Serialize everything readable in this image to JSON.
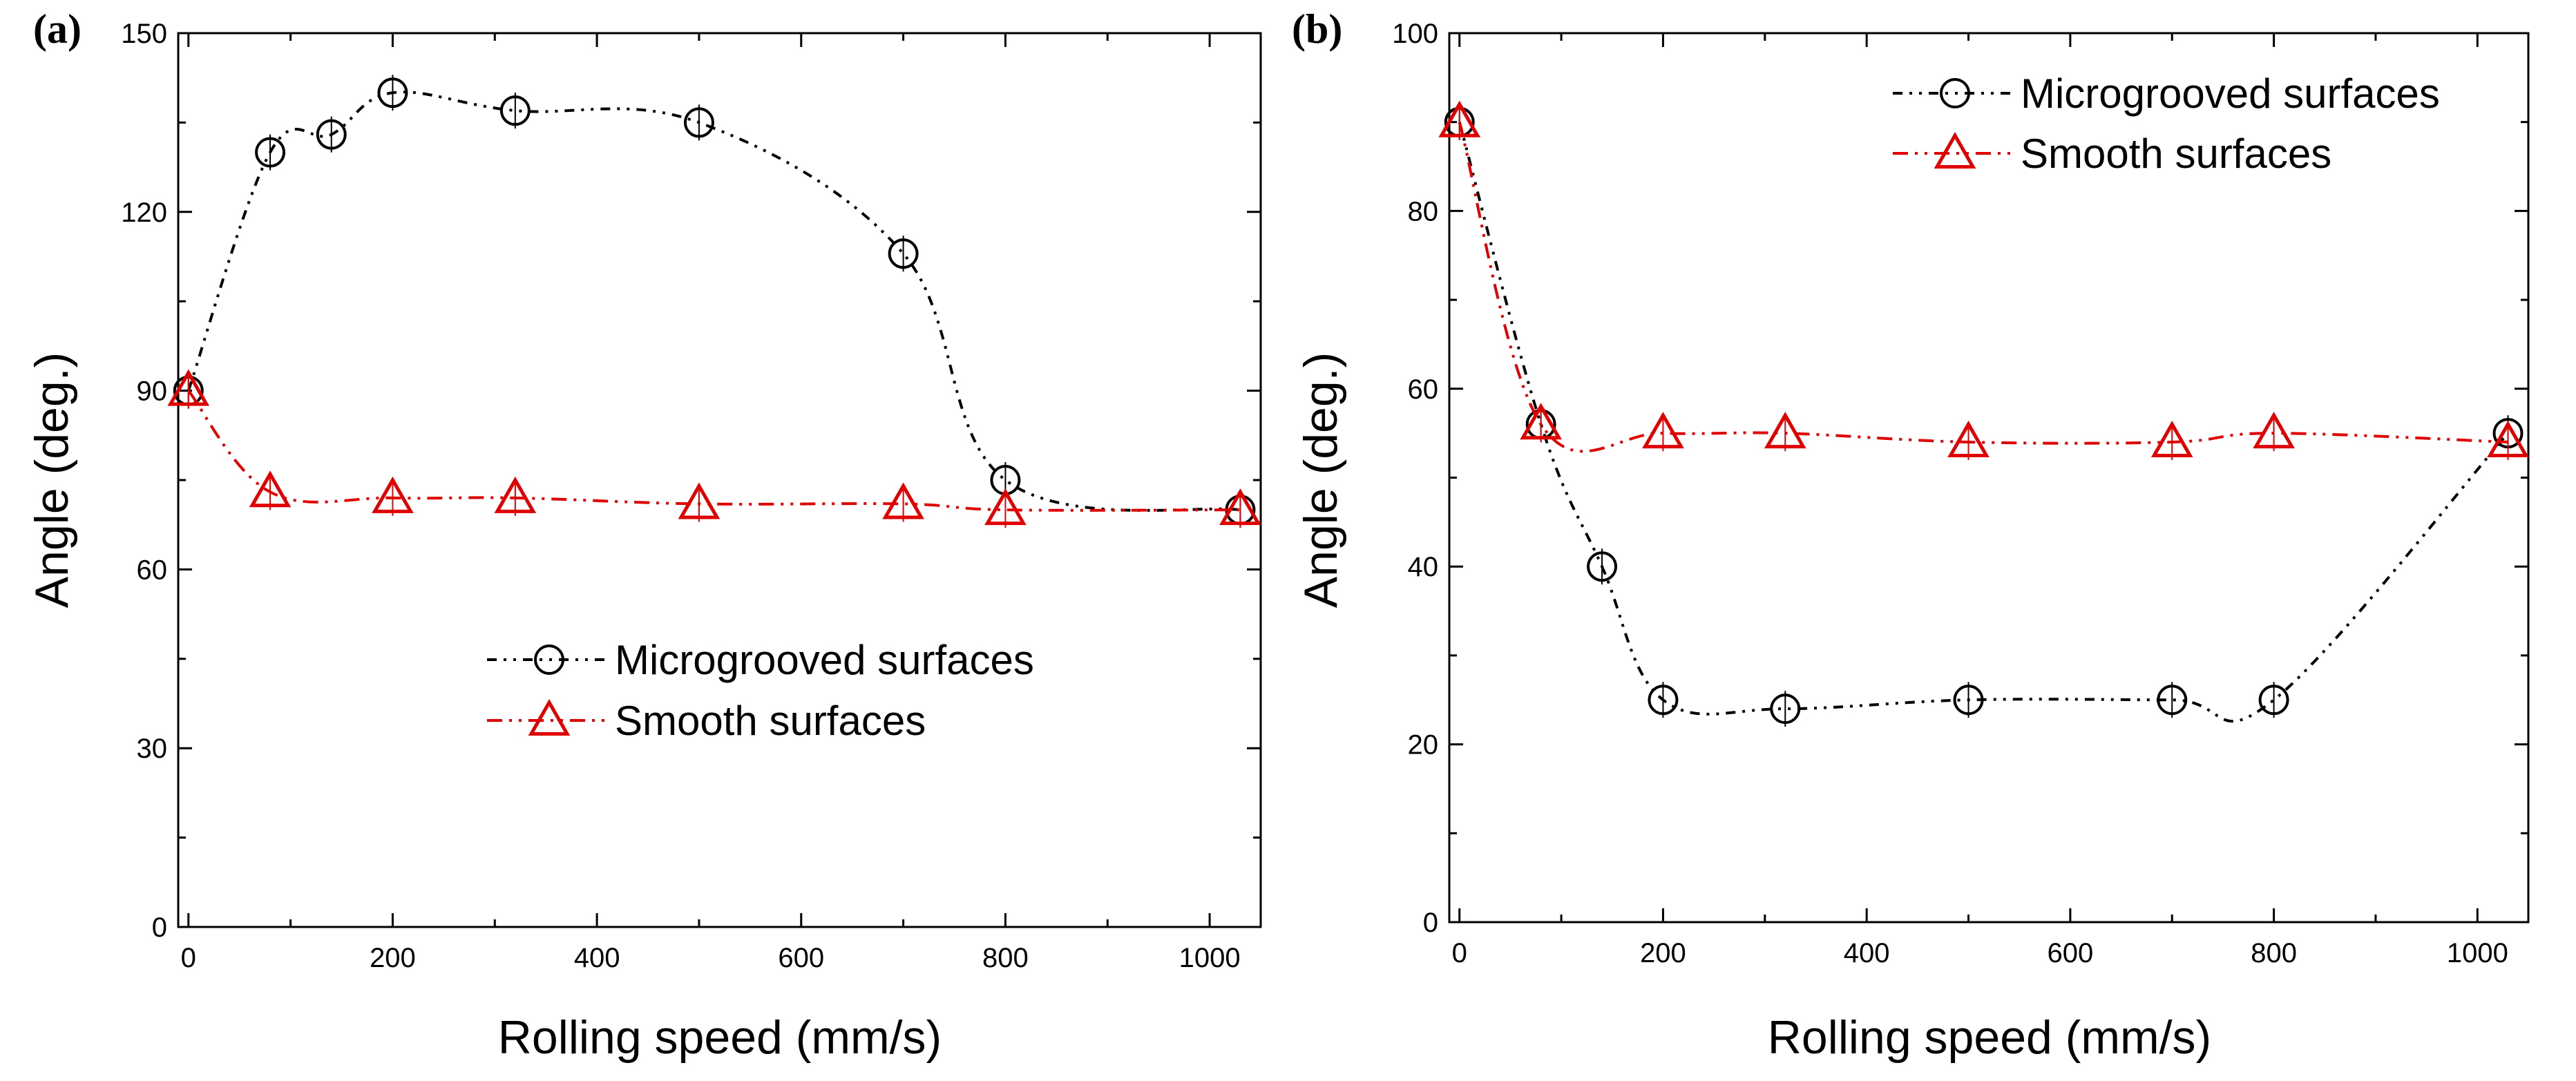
{
  "chart_data": [
    {
      "type": "line",
      "panel_label": "(a)",
      "xlabel": "Rolling speed (mm/s)",
      "ylabel": "Angle (deg.)",
      "xlim": [
        -10,
        1050
      ],
      "ylim": [
        0,
        150
      ],
      "xticks": [
        0,
        200,
        400,
        600,
        800,
        1000
      ],
      "yticks": [
        0,
        30,
        60,
        90,
        120,
        150
      ],
      "legend_position": "center",
      "series": [
        {
          "name": "Microgrooved surfaces",
          "marker": "circle",
          "color": "#000000",
          "x": [
            0,
            80,
            140,
            200,
            320,
            500,
            700,
            800,
            1030
          ],
          "y": [
            90,
            130,
            133,
            140,
            137,
            135,
            113,
            75,
            70
          ]
        },
        {
          "name": "Smooth surfaces",
          "marker": "triangle",
          "color": "#e00000",
          "x": [
            0,
            80,
            200,
            320,
            500,
            700,
            800,
            1030
          ],
          "y": [
            90,
            73,
            72,
            72,
            71,
            71,
            70,
            70
          ]
        }
      ]
    },
    {
      "type": "line",
      "panel_label": "(b)",
      "xlabel": "Rolling speed (mm/s)",
      "ylabel": "Angle (deg.)",
      "xlim": [
        -10,
        1050
      ],
      "ylim": [
        0,
        100
      ],
      "xticks": [
        0,
        200,
        400,
        600,
        800,
        1000
      ],
      "yticks": [
        0,
        20,
        40,
        60,
        80,
        100
      ],
      "legend_position": "top-right",
      "series": [
        {
          "name": "Microgrooved surfaces",
          "marker": "circle",
          "color": "#000000",
          "x": [
            0,
            80,
            140,
            200,
            320,
            500,
            700,
            800,
            1030
          ],
          "y": [
            90,
            56,
            40,
            25,
            24,
            25,
            25,
            25,
            55
          ]
        },
        {
          "name": "Smooth surfaces",
          "marker": "triangle",
          "color": "#e00000",
          "x": [
            0,
            80,
            200,
            320,
            500,
            700,
            800,
            1030
          ],
          "y": [
            90,
            56,
            55,
            55,
            54,
            54,
            55,
            54
          ]
        }
      ]
    }
  ]
}
